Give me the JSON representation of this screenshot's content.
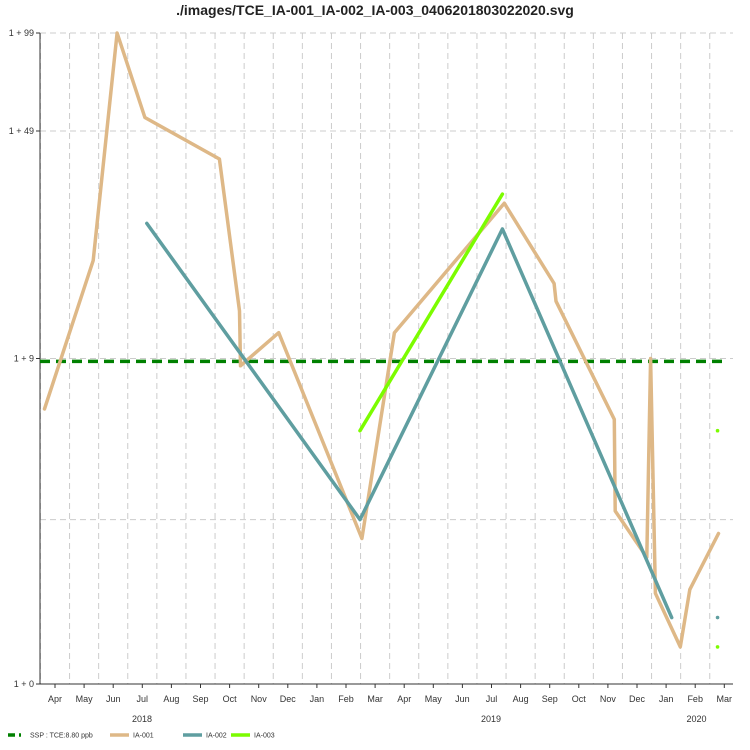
{
  "chart_data": {
    "type": "line",
    "title": "./images/TCE_IA-001_IA-002_IA-003_0406201803022020.svg",
    "y_tick_labels": [
      "1 + 0",
      "1 + 9",
      "1 + 49",
      "1 + 99"
    ],
    "y_tick_values": [
      0,
      9,
      49,
      99
    ],
    "y_scale": "log(1+y)",
    "months": [
      "Apr",
      "May",
      "Jun",
      "Jul",
      "Aug",
      "Sep",
      "Oct",
      "Nov",
      "Dec",
      "Jan",
      "Feb",
      "Mar",
      "Apr",
      "May",
      "Jun",
      "Jul",
      "Aug",
      "Sep",
      "Oct",
      "Nov",
      "Dec",
      "Jan",
      "Feb",
      "Mar"
    ],
    "years": [
      {
        "label": "2018",
        "month": "2018-07-15"
      },
      {
        "label": "2019",
        "month": "2019-07-15"
      },
      {
        "label": "2020",
        "month": "2020-02-15"
      }
    ],
    "xlim": [
      "2018-03-15",
      "2020-03-31"
    ],
    "reference_line": {
      "label": "SSP : TCE:8.80 ppb",
      "value": 8.8,
      "color": "#008000"
    },
    "series": [
      {
        "name": "IA-001",
        "color": "#deb887",
        "points": [
          {
            "x": "2018-04-04",
            "y": 6.0
          },
          {
            "x": "2018-05-25",
            "y": 19.0
          },
          {
            "x": "2018-06-19",
            "y": 99.0
          },
          {
            "x": "2018-07-18",
            "y": 54.0
          },
          {
            "x": "2018-10-04",
            "y": 40.0
          },
          {
            "x": "2018-10-25",
            "y": 13.0
          },
          {
            "x": "2018-10-26",
            "y": 8.5
          },
          {
            "x": "2018-12-05",
            "y": 11.0
          },
          {
            "x": "2019-03-02",
            "y": 1.8
          },
          {
            "x": "2019-04-05",
            "y": 11.0
          },
          {
            "x": "2019-07-29",
            "y": 29.0
          },
          {
            "x": "2019-09-19",
            "y": 16.0
          },
          {
            "x": "2019-09-21",
            "y": 14.0
          },
          {
            "x": "2019-11-21",
            "y": 5.5
          },
          {
            "x": "2019-11-22",
            "y": 2.4
          },
          {
            "x": "2019-12-25",
            "y": 1.45
          },
          {
            "x": "2019-12-29",
            "y": 9.0
          },
          {
            "x": "2020-01-03",
            "y": 0.9
          },
          {
            "x": "2020-01-29",
            "y": 0.3
          },
          {
            "x": "2020-02-08",
            "y": 0.95
          },
          {
            "x": "2020-03-09",
            "y": 1.9
          }
        ]
      },
      {
        "name": "IA-002",
        "color": "#5f9ea0",
        "points": [
          {
            "x": "2018-07-20",
            "y": 25.0
          },
          {
            "x": "2019-02-28",
            "y": 2.2
          },
          {
            "x": "2019-07-27",
            "y": 24.0
          },
          {
            "x": "2020-01-20",
            "y": 0.6
          }
        ]
      },
      {
        "name": "IA-002 marker",
        "color": "#5f9ea0",
        "marker_only": true,
        "points": [
          {
            "x": "2020-03-08",
            "y": 0.6
          }
        ]
      },
      {
        "name": "IA-003",
        "color": "#7cfc00",
        "points": [
          {
            "x": "2019-02-28",
            "y": 5.0
          },
          {
            "x": "2019-07-27",
            "y": 31.0
          }
        ]
      },
      {
        "name": "IA-003 marker",
        "color": "#7cfc00",
        "marker_only": true,
        "points": [
          {
            "x": "2020-03-08",
            "y": 5.0
          },
          {
            "x": "2020-03-08",
            "y": 0.3
          }
        ]
      }
    ],
    "legend": [
      {
        "label": "SSP : TCE:8.80 ppb",
        "color": "#008000",
        "style": "dashed"
      },
      {
        "label": "IA-001",
        "color": "#deb887",
        "style": "solid"
      },
      {
        "label": "IA-002",
        "color": "#5f9ea0",
        "style": "solid"
      },
      {
        "label": "IA-003",
        "color": "#7cfc00",
        "style": "solid"
      }
    ],
    "legend_position": "bottom-left",
    "grid": true
  }
}
